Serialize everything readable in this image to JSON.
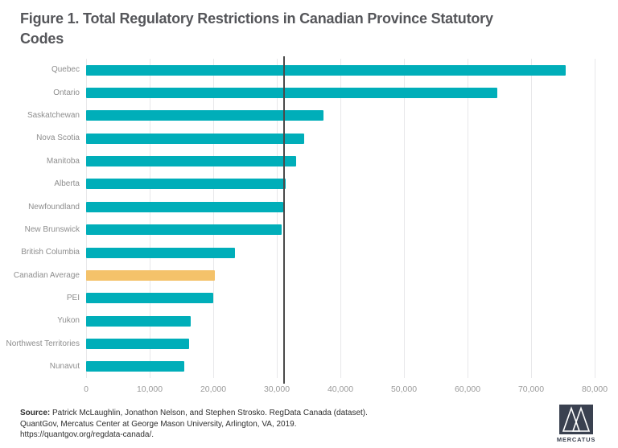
{
  "title": "Figure 1. Total Regulatory Restrictions in Canadian Province Statutory Codes",
  "chart_data": {
    "type": "bar",
    "orientation": "horizontal",
    "title": "Figure 1. Total Regulatory Restrictions in Canadian Province Statutory Codes",
    "xlabel": "",
    "ylabel": "",
    "xlim": [
      0,
      80000
    ],
    "grid": "vertical",
    "categories": [
      "Quebec",
      "Ontario",
      "Saskatchewan",
      "Nova Scotia",
      "Manitoba",
      "Alberta",
      "Newfoundland",
      "New Brunswick",
      "British Columbia",
      "Canadian Average",
      "PEI",
      "Yukon",
      "Northwest Territories",
      "Nunavut"
    ],
    "values": [
      75400,
      64700,
      37300,
      34300,
      33000,
      31400,
      31000,
      30700,
      23400,
      20200,
      20000,
      16400,
      16200,
      15500
    ],
    "highlight_category": "Canadian Average",
    "colors": {
      "bar_default": "#00AEB9",
      "bar_highlight": "#F4C26A",
      "gridline": "#e8e8ea",
      "reference_line": "#4a4a4a"
    },
    "x_ticks": [
      {
        "value": 0,
        "label": "0"
      },
      {
        "value": 10000,
        "label": "10,000"
      },
      {
        "value": 20000,
        "label": "20,000"
      },
      {
        "value": 30000,
        "label": "30,000"
      },
      {
        "value": 40000,
        "label": "40,000"
      },
      {
        "value": 50000,
        "label": "50,000"
      },
      {
        "value": 60000,
        "label": "60,000"
      },
      {
        "value": 70000,
        "label": "70,000"
      },
      {
        "value": 80000,
        "label": "80,000"
      }
    ],
    "reference_line": {
      "value": 31100
    }
  },
  "footer": {
    "source_label": "Source:",
    "line1": "Patrick McLaughlin, Jonathon Nelson, and Stephen Strosko. RegData Canada (dataset).",
    "line2": "QuantGov, Mercatus Center at George Mason University, Arlington, VA, 2019.",
    "line3": "https://quantgov.org/regdata-canada/."
  },
  "logo": {
    "text": "MERCATUS",
    "box_color": "#3A4150"
  }
}
